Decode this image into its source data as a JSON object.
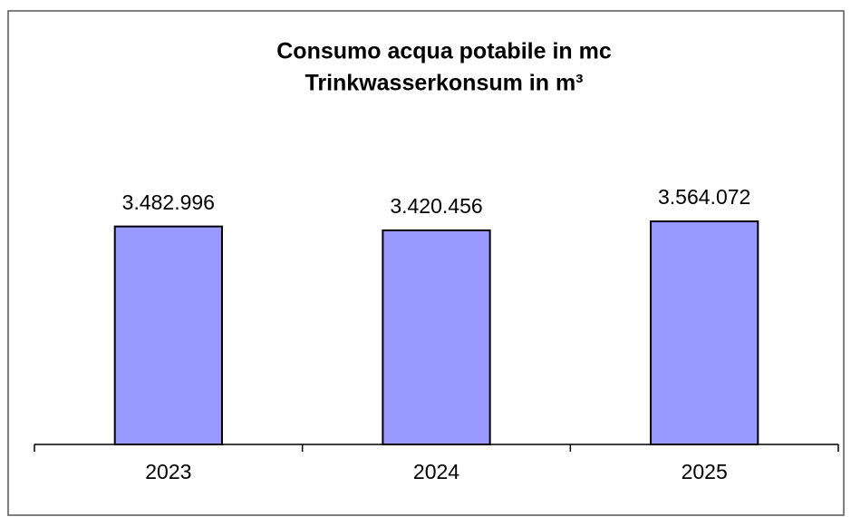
{
  "chart_data": {
    "type": "bar",
    "title": [
      "Consumo acqua potabile in mc",
      "Trinkwasserkonsum in m³"
    ],
    "categories": [
      "2023",
      "2024",
      "2025"
    ],
    "values": [
      3482996,
      3420456,
      3564072
    ],
    "value_labels": [
      "3.482.996",
      "3.420.456",
      "3.564.072"
    ],
    "color": "#9999ff",
    "ylim": [
      0,
      4000000
    ]
  }
}
